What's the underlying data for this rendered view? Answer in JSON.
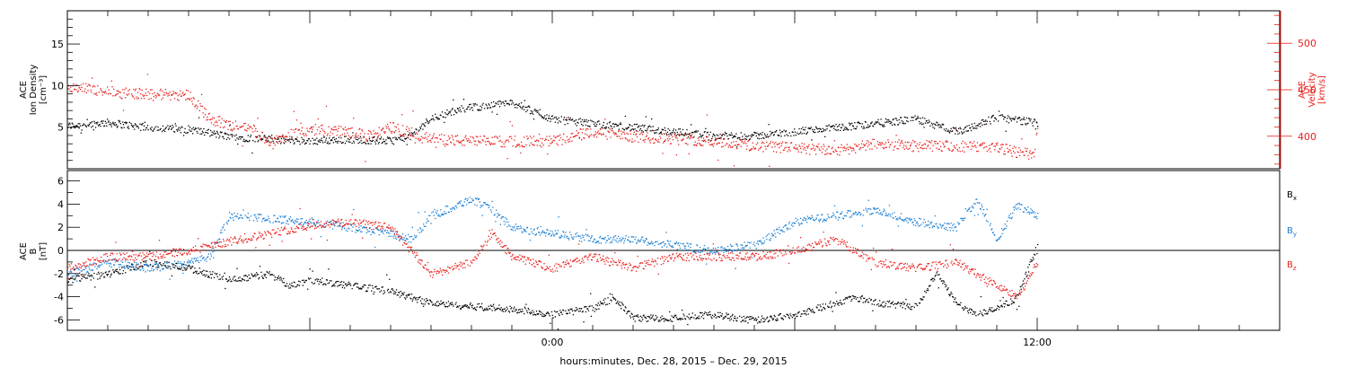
{
  "chart_data": [
    {
      "type": "scatter",
      "panel": "top",
      "ylabel_lines": [
        "ACE",
        "Ion Density",
        "[cm⁻³]"
      ],
      "ylim": [
        0,
        19
      ],
      "yticks": [
        5,
        10,
        15
      ],
      "y2label_lines": [
        "ACE",
        "Velocity",
        "[km/s]"
      ],
      "y2lim": [
        365,
        535
      ],
      "y2ticks": [
        400,
        450,
        500
      ],
      "xlim_hours": [
        -12,
        18
      ],
      "series": [
        {
          "axis": "left",
          "color": "#000000",
          "x": [
            -12,
            -11,
            -10,
            -9,
            -8,
            -7,
            -6,
            -5,
            -4,
            -3.5,
            -3,
            -2.2,
            -1,
            0,
            1,
            2,
            3,
            4,
            5,
            6,
            7,
            8,
            9,
            10,
            11,
            12
          ],
          "y": [
            5.2,
            5.6,
            5.0,
            4.8,
            3.9,
            3.6,
            3.4,
            3.6,
            3.4,
            4.0,
            6.2,
            7.3,
            8.0,
            6.0,
            5.5,
            5.0,
            4.5,
            4.0,
            4.0,
            4.5,
            5.0,
            5.5,
            6.0,
            4.5,
            6.2,
            5.6
          ]
        },
        {
          "axis": "right",
          "color": "#e8201c",
          "x": [
            -12,
            -11,
            -10,
            -9,
            -8.5,
            -8,
            -7.5,
            -7,
            -6,
            -5,
            -4.5,
            -4,
            -3,
            -2,
            -1,
            0,
            1,
            2,
            3,
            4,
            5,
            6,
            7,
            8,
            9,
            10,
            11,
            11.9,
            12
          ],
          "y": [
            455,
            448,
            446,
            445,
            420,
            412,
            410,
            395,
            408,
            405,
            400,
            410,
            398,
            395,
            395,
            395,
            405,
            400,
            398,
            395,
            390,
            388,
            385,
            392,
            390,
            390,
            388,
            380,
            405
          ]
        }
      ]
    },
    {
      "type": "scatter",
      "panel": "bottom",
      "ylabel_lines": [
        "ACE",
        "B",
        "[nT]"
      ],
      "ylim": [
        -6.9,
        6.9
      ],
      "yticks": [
        -6,
        -4,
        -2,
        0,
        2,
        4,
        6
      ],
      "zero_line": true,
      "xlim_hours": [
        -12,
        18
      ],
      "xtick_labels": [
        {
          "hour": 0,
          "label": "0:00"
        },
        {
          "hour": 12,
          "label": "12:00"
        }
      ],
      "xlabel": "hours:minutes, Dec. 28, 2015 – Dec. 29, 2015",
      "legend": [
        {
          "base": "B",
          "sub": "x",
          "color": "#000000"
        },
        {
          "base": "B",
          "sub": "y",
          "color": "#1a7fd4"
        },
        {
          "base": "B",
          "sub": "z",
          "color": "#e8201c"
        }
      ],
      "series": [
        {
          "name": "Bx",
          "color": "#000000",
          "x": [
            -12,
            -11,
            -10,
            -9,
            -8,
            -7,
            -6.5,
            -6,
            -5,
            -4,
            -3,
            -2,
            -1,
            0,
            0.5,
            1,
            1.5,
            2,
            3,
            4,
            5,
            6,
            7,
            7.5,
            8,
            9,
            9.5,
            10,
            10.5,
            11,
            11.5,
            12
          ],
          "y": [
            -2.5,
            -2.0,
            -1.0,
            -1.5,
            -2.5,
            -2.0,
            -3.0,
            -2.5,
            -3.0,
            -3.5,
            -4.5,
            -4.8,
            -5.0,
            -5.5,
            -5.2,
            -5.0,
            -4.0,
            -5.8,
            -5.8,
            -5.5,
            -6.0,
            -5.5,
            -4.5,
            -4.0,
            -4.5,
            -4.8,
            -2.0,
            -4.5,
            -5.5,
            -5.0,
            -4.0,
            0.5
          ]
        },
        {
          "name": "By",
          "color": "#1a7fd4",
          "x": [
            -12,
            -11,
            -10,
            -9,
            -8.5,
            -8,
            -7,
            -6,
            -5,
            -4,
            -3.5,
            -3,
            -2,
            -1.5,
            -1,
            0,
            1,
            2,
            3,
            4,
            5,
            6,
            7,
            8,
            9,
            10,
            10.5,
            11,
            11.5,
            12
          ],
          "y": [
            -2.0,
            -1.0,
            -1.5,
            -1.0,
            -0.5,
            3.0,
            2.8,
            2.5,
            2.0,
            1.5,
            1.0,
            3.0,
            4.5,
            3.5,
            2.0,
            1.5,
            1.0,
            1.0,
            0.5,
            0.0,
            0.5,
            2.5,
            3.0,
            3.5,
            2.5,
            2.0,
            4.5,
            1.0,
            4.0,
            3.0
          ]
        },
        {
          "name": "Bz",
          "color": "#e8201c",
          "x": [
            -12,
            -11,
            -10,
            -9,
            -8,
            -7,
            -6,
            -5,
            -4,
            -3.5,
            -3,
            -2,
            -1.5,
            -1,
            0,
            0.5,
            1,
            2,
            3,
            4,
            5,
            6,
            7,
            8,
            9,
            10,
            11,
            11.5,
            12
          ],
          "y": [
            -1.5,
            -0.5,
            -0.5,
            0.0,
            0.8,
            1.5,
            2.2,
            2.5,
            2.0,
            0.0,
            -2.0,
            -1.0,
            1.5,
            -0.5,
            -1.5,
            -1.0,
            -0.5,
            -1.5,
            -0.5,
            -0.5,
            -0.5,
            0.0,
            1.0,
            -1.0,
            -1.5,
            -1.0,
            -3.0,
            -4.0,
            -1.0
          ]
        }
      ]
    }
  ]
}
